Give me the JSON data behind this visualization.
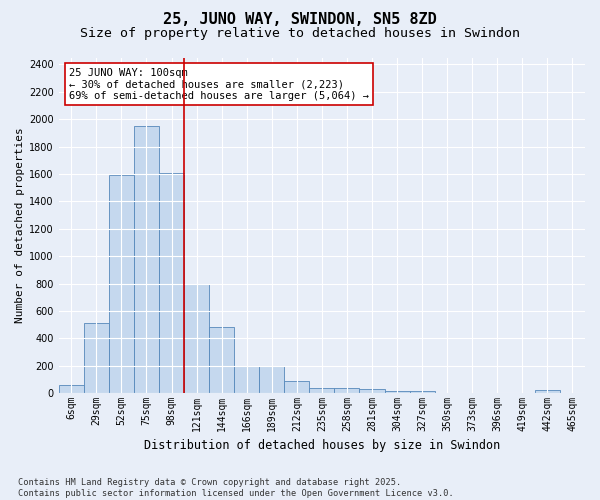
{
  "title": "25, JUNO WAY, SWINDON, SN5 8ZD",
  "subtitle": "Size of property relative to detached houses in Swindon",
  "xlabel": "Distribution of detached houses by size in Swindon",
  "ylabel": "Number of detached properties",
  "bar_labels": [
    "6sqm",
    "29sqm",
    "52sqm",
    "75sqm",
    "98sqm",
    "121sqm",
    "144sqm",
    "166sqm",
    "189sqm",
    "212sqm",
    "235sqm",
    "258sqm",
    "281sqm",
    "304sqm",
    "327sqm",
    "350sqm",
    "373sqm",
    "396sqm",
    "419sqm",
    "442sqm",
    "465sqm"
  ],
  "bar_values": [
    60,
    510,
    1590,
    1950,
    1610,
    800,
    480,
    200,
    195,
    90,
    40,
    40,
    30,
    15,
    15,
    0,
    0,
    0,
    0,
    25,
    0
  ],
  "bar_color": "#c5d8ee",
  "bar_edgecolor": "#5588bb",
  "vline_index": 5,
  "vline_color": "#cc0000",
  "annotation_text": "25 JUNO WAY: 100sqm\n← 30% of detached houses are smaller (2,223)\n69% of semi-detached houses are larger (5,064) →",
  "annotation_box_edgecolor": "#cc0000",
  "annotation_box_facecolor": "#ffffff",
  "ylim": [
    0,
    2450
  ],
  "yticks": [
    0,
    200,
    400,
    600,
    800,
    1000,
    1200,
    1400,
    1600,
    1800,
    2000,
    2200,
    2400
  ],
  "title_fontsize": 11,
  "subtitle_fontsize": 9.5,
  "xlabel_fontsize": 8.5,
  "ylabel_fontsize": 8,
  "tick_fontsize": 7,
  "ann_fontsize": 7.5,
  "footnote": "Contains HM Land Registry data © Crown copyright and database right 2025.\nContains public sector information licensed under the Open Government Licence v3.0.",
  "bg_color": "#e8eef8",
  "plot_bg_color": "#e8eef8",
  "grid_color": "#ffffff",
  "figsize": [
    6.0,
    5.0
  ],
  "dpi": 100
}
